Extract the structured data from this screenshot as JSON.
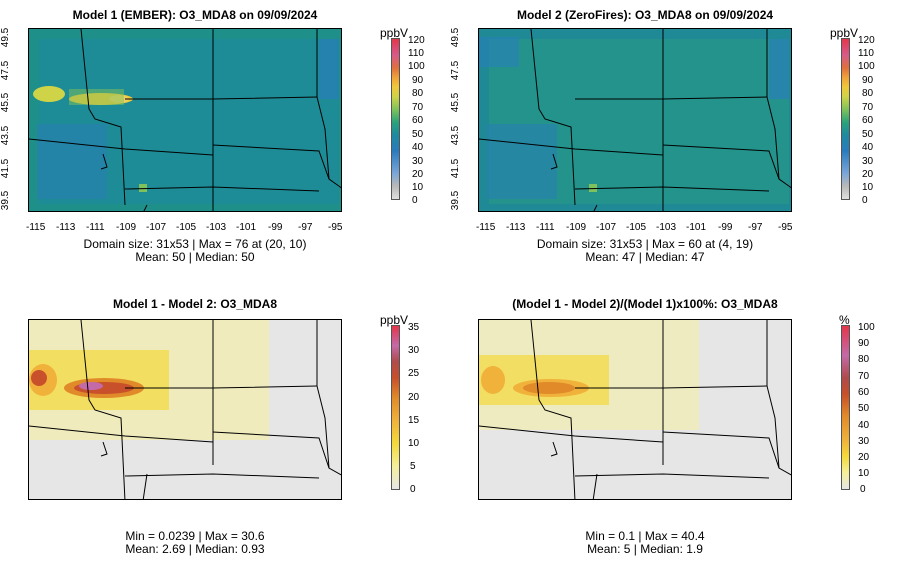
{
  "panels": [
    {
      "title": "Model 1 (EMBER): O3_MDA8 on 09/09/2024",
      "unit": "ppbV",
      "stats_line1": "Domain size: 31x53 | Max = 76 at (20, 10)",
      "stats_line2": "Mean: 50 |  Median: 50",
      "legend_ticks": [
        "120",
        "110",
        "100",
        "90",
        "80",
        "70",
        "60",
        "50",
        "40",
        "30",
        "20",
        "10",
        "0"
      ],
      "legend_range": [
        0,
        120
      ]
    },
    {
      "title": "Model 2 (ZeroFires): O3_MDA8 on 09/09/2024",
      "unit": "ppbV",
      "stats_line1": "Domain size: 31x53 | Max = 60 at (4, 19)",
      "stats_line2": "Mean: 47 |  Median: 47",
      "legend_ticks": [
        "120",
        "110",
        "100",
        "90",
        "80",
        "70",
        "60",
        "50",
        "40",
        "30",
        "20",
        "10",
        "0"
      ],
      "legend_range": [
        0,
        120
      ]
    },
    {
      "title": "Model 1 - Model 2: O3_MDA8",
      "unit": "ppbV",
      "stats_line1": "Min = 0.0239 | Max = 30.6",
      "stats_line2": "Mean: 2.69 |  Median: 0.93",
      "legend_ticks": [
        "35",
        "30",
        "25",
        "20",
        "15",
        "10",
        "5",
        "0"
      ],
      "legend_range": [
        0,
        35
      ]
    },
    {
      "title": "(Model 1 - Model 2)/(Model 1)x100%: O3_MDA8",
      "unit": "%",
      "stats_line1": "Min = 0.1 | Max = 40.4",
      "stats_line2": "Mean: 5 |  Median: 1.9",
      "legend_ticks": [
        "100",
        "90",
        "80",
        "70",
        "60",
        "50",
        "40",
        "30",
        "20",
        "10",
        "0"
      ],
      "legend_range": [
        0,
        100
      ]
    }
  ],
  "axes": {
    "x_ticks": [
      "-115",
      "-113",
      "-111",
      "-109",
      "-107",
      "-105",
      "-103",
      "-101",
      "-99",
      "-97",
      "-95"
    ],
    "y_ticks": [
      "39.5",
      "41.5",
      "43.5",
      "45.5",
      "47.5",
      "49.5"
    ],
    "x_range": [
      -115,
      -95
    ],
    "y_range": [
      39.5,
      49.5
    ]
  },
  "colors": {
    "abs_scale": [
      "#e0e0e0",
      "#b8b8b8",
      "#7aa6d8",
      "#2a7bbf",
      "#1e8aa0",
      "#2aa37a",
      "#7fc25a",
      "#cfd347",
      "#efc83a",
      "#f0a23a",
      "#e0703c",
      "#d65a8a",
      "#e4364a"
    ],
    "diff_scale": [
      "#e6e6e6",
      "#f5ef9a",
      "#f4d93a",
      "#f0b23a",
      "#e08a2a",
      "#c8502a",
      "#b04a4a",
      "#c46aa8",
      "#e4364a"
    ],
    "model1_background": "#1f8f8a",
    "model2_background": "#1f8a95",
    "diff_background": "#e6e6e6"
  }
}
